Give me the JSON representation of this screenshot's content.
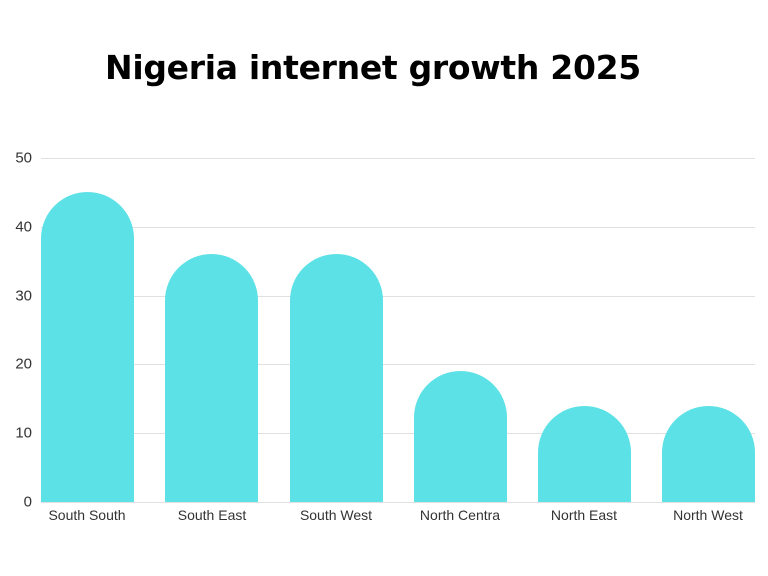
{
  "title": "Nigeria internet growth 2025",
  "colors": {
    "bar": "#5ce1e6",
    "gridline": "#e0e0e0",
    "text": "#333333",
    "title": "#000000"
  },
  "chart_data": {
    "type": "bar",
    "title": "Nigeria internet growth 2025",
    "xlabel": "",
    "ylabel": "",
    "categories": [
      "South South",
      "South East",
      "South West",
      "North Centra",
      "North East",
      "North West"
    ],
    "values": [
      45,
      36,
      36,
      19,
      14,
      14
    ],
    "ylim": [
      0,
      50
    ],
    "yticks": [
      0,
      10,
      20,
      30,
      40,
      50
    ],
    "grid": true,
    "legend": null
  },
  "axis": {
    "yticks": [
      "0",
      "10",
      "20",
      "30",
      "40",
      "50"
    ]
  },
  "categories": [
    "South South",
    "South East",
    "South West",
    "North Centra",
    "North East",
    "North West"
  ]
}
